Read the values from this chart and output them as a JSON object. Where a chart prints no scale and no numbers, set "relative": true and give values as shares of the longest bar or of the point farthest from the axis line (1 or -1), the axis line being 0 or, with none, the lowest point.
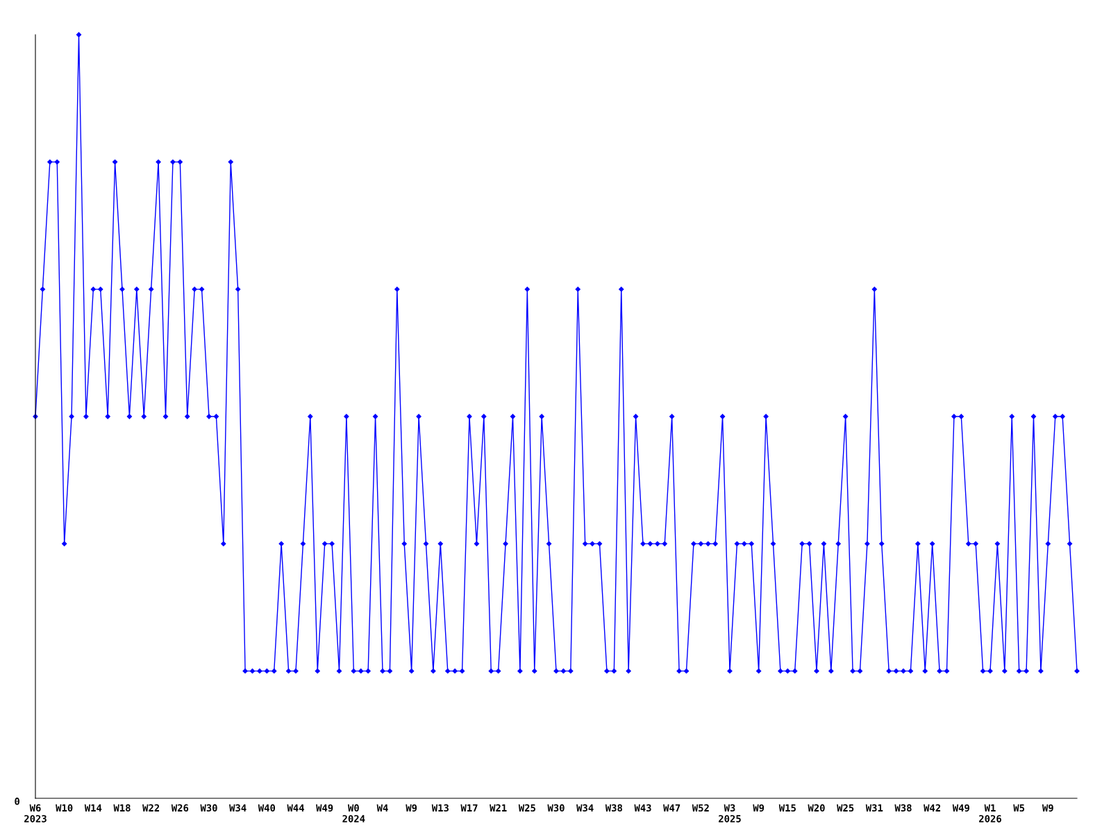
{
  "chart_data": {
    "type": "line",
    "relative": true,
    "marker": "diamond",
    "line_style": "solid",
    "grid": false,
    "legend": false,
    "annotations": [
      "0"
    ],
    "categories": [
      "W6\n2023",
      null,
      null,
      null,
      "W10",
      null,
      null,
      null,
      "W14",
      null,
      null,
      null,
      "W18",
      null,
      null,
      null,
      "W22",
      null,
      null,
      null,
      "W26",
      null,
      null,
      null,
      "W30",
      null,
      null,
      null,
      "W34",
      null,
      null,
      null,
      "W40",
      null,
      null,
      null,
      "W44",
      null,
      null,
      null,
      "W49",
      null,
      null,
      null,
      "W0\n2024",
      null,
      null,
      null,
      "W4",
      null,
      null,
      null,
      "W9",
      null,
      null,
      null,
      "W13",
      null,
      null,
      null,
      "W17",
      null,
      null,
      null,
      "W21",
      null,
      null,
      null,
      "W25",
      null,
      null,
      null,
      "W30",
      null,
      null,
      null,
      "W34",
      null,
      null,
      null,
      "W38",
      null,
      null,
      null,
      "W43",
      null,
      null,
      null,
      "W47",
      null,
      null,
      null,
      "W52",
      null,
      null,
      null,
      "W3\n2025",
      null,
      null,
      null,
      "W9",
      null,
      null,
      null,
      "W15",
      null,
      null,
      null,
      "W20",
      null,
      null,
      null,
      "W25",
      null,
      null,
      null,
      "W31",
      null,
      null,
      null,
      "W38",
      null,
      null,
      null,
      "W42",
      null,
      null,
      null,
      "W49",
      null,
      null,
      null,
      "W1\n2026",
      null,
      null,
      null,
      "W5",
      null,
      null,
      null,
      "W9",
      null,
      null,
      null,
      null
    ],
    "series": [
      {
        "color": "#0000ff",
        "values": [
          0.5,
          0.6667,
          0.8333,
          0.8333,
          0.3333,
          0.5,
          1,
          0.5,
          0.6667,
          0.6667,
          0.5,
          0.8333,
          0.6667,
          0.5,
          0.6667,
          0.5,
          0.6667,
          0.8333,
          0.5,
          0.8333,
          0.8333,
          0.5,
          0.6667,
          0.6667,
          0.5,
          0.5,
          0.3333,
          0.8333,
          0.6667,
          0.1667,
          0.1667,
          0.1667,
          0.1667,
          0.1667,
          0.3333,
          0.1667,
          0.1667,
          0.3333,
          0.5,
          0.1667,
          0.3333,
          0.3333,
          0.1667,
          0.5,
          0.1667,
          0.1667,
          0.1667,
          0.5,
          0.1667,
          0.1667,
          0.6667,
          0.3333,
          0.1667,
          0.5,
          0.3333,
          0.1667,
          0.3333,
          0.1667,
          0.1667,
          0.1667,
          0.5,
          0.3333,
          0.5,
          0.1667,
          0.1667,
          0.3333,
          0.5,
          0.1667,
          0.6667,
          0.1667,
          0.5,
          0.3333,
          0.1667,
          0.1667,
          0.1667,
          0.6667,
          0.3333,
          0.3333,
          0.3333,
          0.1667,
          0.1667,
          0.6667,
          0.1667,
          0.5,
          0.3333,
          0.3333,
          0.3333,
          0.3333,
          0.5,
          0.1667,
          0.1667,
          0.3333,
          0.3333,
          0.3333,
          0.3333,
          0.5,
          0.1667,
          0.3333,
          0.3333,
          0.3333,
          0.1667,
          0.5,
          0.3333,
          0.1667,
          0.1667,
          0.1667,
          0.3333,
          0.3333,
          0.1667,
          0.3333,
          0.1667,
          0.3333,
          0.5,
          0.1667,
          0.1667,
          0.3333,
          0.6667,
          0.3333,
          0.1667,
          0.1667,
          0.1667,
          0.1667,
          0.3333,
          0.1667,
          0.3333,
          0.1667,
          0.1667,
          0.5,
          0.5,
          0.3333,
          0.3333,
          0.1667,
          0.1667,
          0.3333,
          0.1667,
          0.5,
          0.1667,
          0.1667,
          0.5,
          0.1667,
          0.3333,
          0.5,
          0.5,
          0.3333,
          0.1667
        ]
      }
    ]
  }
}
